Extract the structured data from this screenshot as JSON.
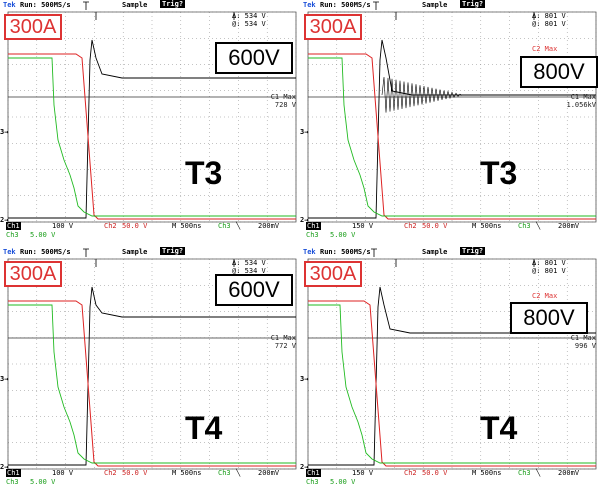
{
  "header": {
    "tek": "Tek",
    "run": "Run: 500MS/s",
    "sample": "Sample",
    "trig": "Trig?"
  },
  "panels": [
    {
      "current": "300A",
      "voltage": "600V",
      "transistor": "T3",
      "delta": "Δ: 534 V",
      "at": "@: 534 V",
      "c1max_label": "C1 Max",
      "c1max_value": "728 V",
      "c2max_label": "",
      "footer": {
        "ch1": "Ch1",
        "ch1v": "100 V",
        "ch2": "Ch2",
        "ch2v": "50.0 V",
        "time": "M  500ns",
        "ch3": "Ch3",
        "trig": "╲",
        "trigv": "200mV",
        "ch3b": "Ch3",
        "ch3v": "5.00 V"
      }
    },
    {
      "current": "300A",
      "voltage": "800V",
      "transistor": "T3",
      "delta": "Δ: 801 V",
      "at": "@: 801 V",
      "c1max_label": "C1 Max",
      "c1max_value": "1.056kV",
      "c2max_label": "C2 Max",
      "footer": {
        "ch1": "Ch1",
        "ch1v": "150 V",
        "ch2": "Ch2",
        "ch2v": "50.0 V",
        "time": "M  500ns",
        "ch3": "Ch3",
        "trig": "╲",
        "trigv": "200mV",
        "ch3b": "Ch3",
        "ch3v": "5.00 V"
      }
    },
    {
      "current": "300A",
      "voltage": "600V",
      "transistor": "T4",
      "delta": "Δ: 534 V",
      "at": "@: 534 V",
      "c1max_label": "C1 Max",
      "c1max_value": "772 V",
      "c2max_label": "",
      "footer": {
        "ch1": "Ch1",
        "ch1v": "100 V",
        "ch2": "Ch2",
        "ch2v": "50.0 V",
        "time": "M  500ns",
        "ch3": "Ch3",
        "trig": "╲",
        "trigv": "200mV",
        "ch3b": "Ch3",
        "ch3v": "5.00 V"
      }
    },
    {
      "current": "300A",
      "voltage": "800V",
      "transistor": "T4",
      "delta": "Δ: 801 V",
      "at": "@: 801 V",
      "c1max_label": "C1 Max",
      "c1max_value": "996 V",
      "c2max_label": "C2 Max",
      "footer": {
        "ch1": "Ch1",
        "ch1v": "150 V",
        "ch2": "Ch2",
        "ch2v": "50.0 V",
        "time": "M  500ns",
        "ch3": "Ch3",
        "trig": "╲",
        "trigv": "200mV",
        "ch3b": "Ch3",
        "ch3v": "5.00 V"
      }
    }
  ],
  "markers": {
    "three": "3→",
    "two": "2→",
    "one": "1→"
  },
  "colors": {
    "ch1": "#000000",
    "ch2": "#dd2222",
    "ch3": "#22bb22",
    "grid": "#8a8a8a",
    "tek": "#1a4fd8"
  }
}
